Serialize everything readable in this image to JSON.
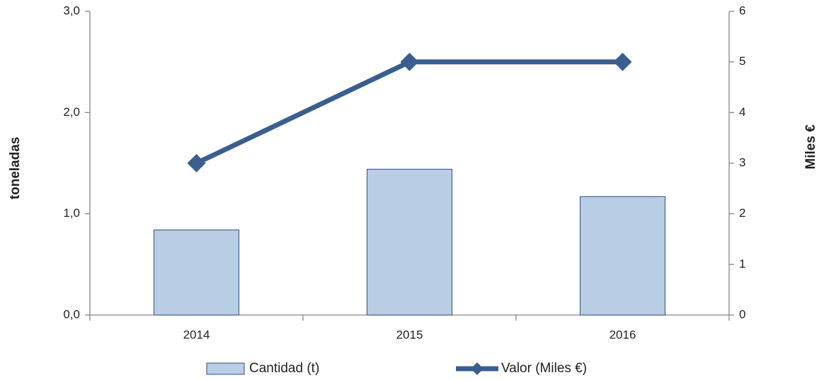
{
  "chart_data": {
    "type": "bar_line",
    "categories": [
      "2014",
      "2015",
      "2016"
    ],
    "series": [
      {
        "name": "Cantidad (t)",
        "type": "bar",
        "color": "#b9cde5",
        "values": [
          0.84,
          1.44,
          1.17
        ]
      },
      {
        "name": "Valor (Miles €)",
        "type": "line",
        "axis": "y2",
        "color": "#3a5f8f",
        "values": [
          3,
          5,
          5
        ]
      }
    ],
    "ylabel": "toneladas",
    "y2label": "Miles €",
    "ylim": [
      0,
      3
    ],
    "yticks": [
      {
        "value": 0,
        "label": "0,0"
      },
      {
        "value": 1,
        "label": "1,0"
      },
      {
        "value": 2,
        "label": "2,0"
      },
      {
        "value": 3,
        "label": "3,0"
      }
    ],
    "y2lim": [
      0,
      6
    ],
    "y2ticks": [
      0,
      1,
      2,
      3,
      4,
      5,
      6
    ],
    "grid": false,
    "legend": "bottom"
  }
}
